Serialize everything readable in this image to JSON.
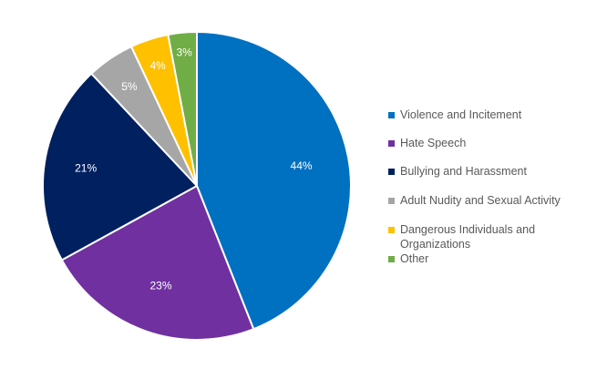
{
  "chart_data": {
    "type": "pie",
    "title": "",
    "legend_position": "right",
    "slices": [
      {
        "label": "Violence and Incitement",
        "value": 44,
        "display": "44%",
        "color": "#0070C0",
        "label_color": "#ffffff"
      },
      {
        "label": "Hate Speech",
        "value": 23,
        "display": "23%",
        "color": "#7030A0",
        "label_color": "#ffffff"
      },
      {
        "label": "Bullying and Harassment",
        "value": 21,
        "display": "21%",
        "color": "#002060",
        "label_color": "#ffffff"
      },
      {
        "label": "Adult Nudity and Sexual Activity",
        "value": 5,
        "display": "5%",
        "color": "#A6A6A6",
        "label_color": "#ffffff"
      },
      {
        "label": "Dangerous Individuals and Organizations",
        "value": 4,
        "display": "4%",
        "color": "#FFC000",
        "label_color": "#ffffff"
      },
      {
        "label": "Other",
        "value": 3,
        "display": "3%",
        "color": "#70AD47",
        "label_color": "#ffffff"
      }
    ]
  }
}
